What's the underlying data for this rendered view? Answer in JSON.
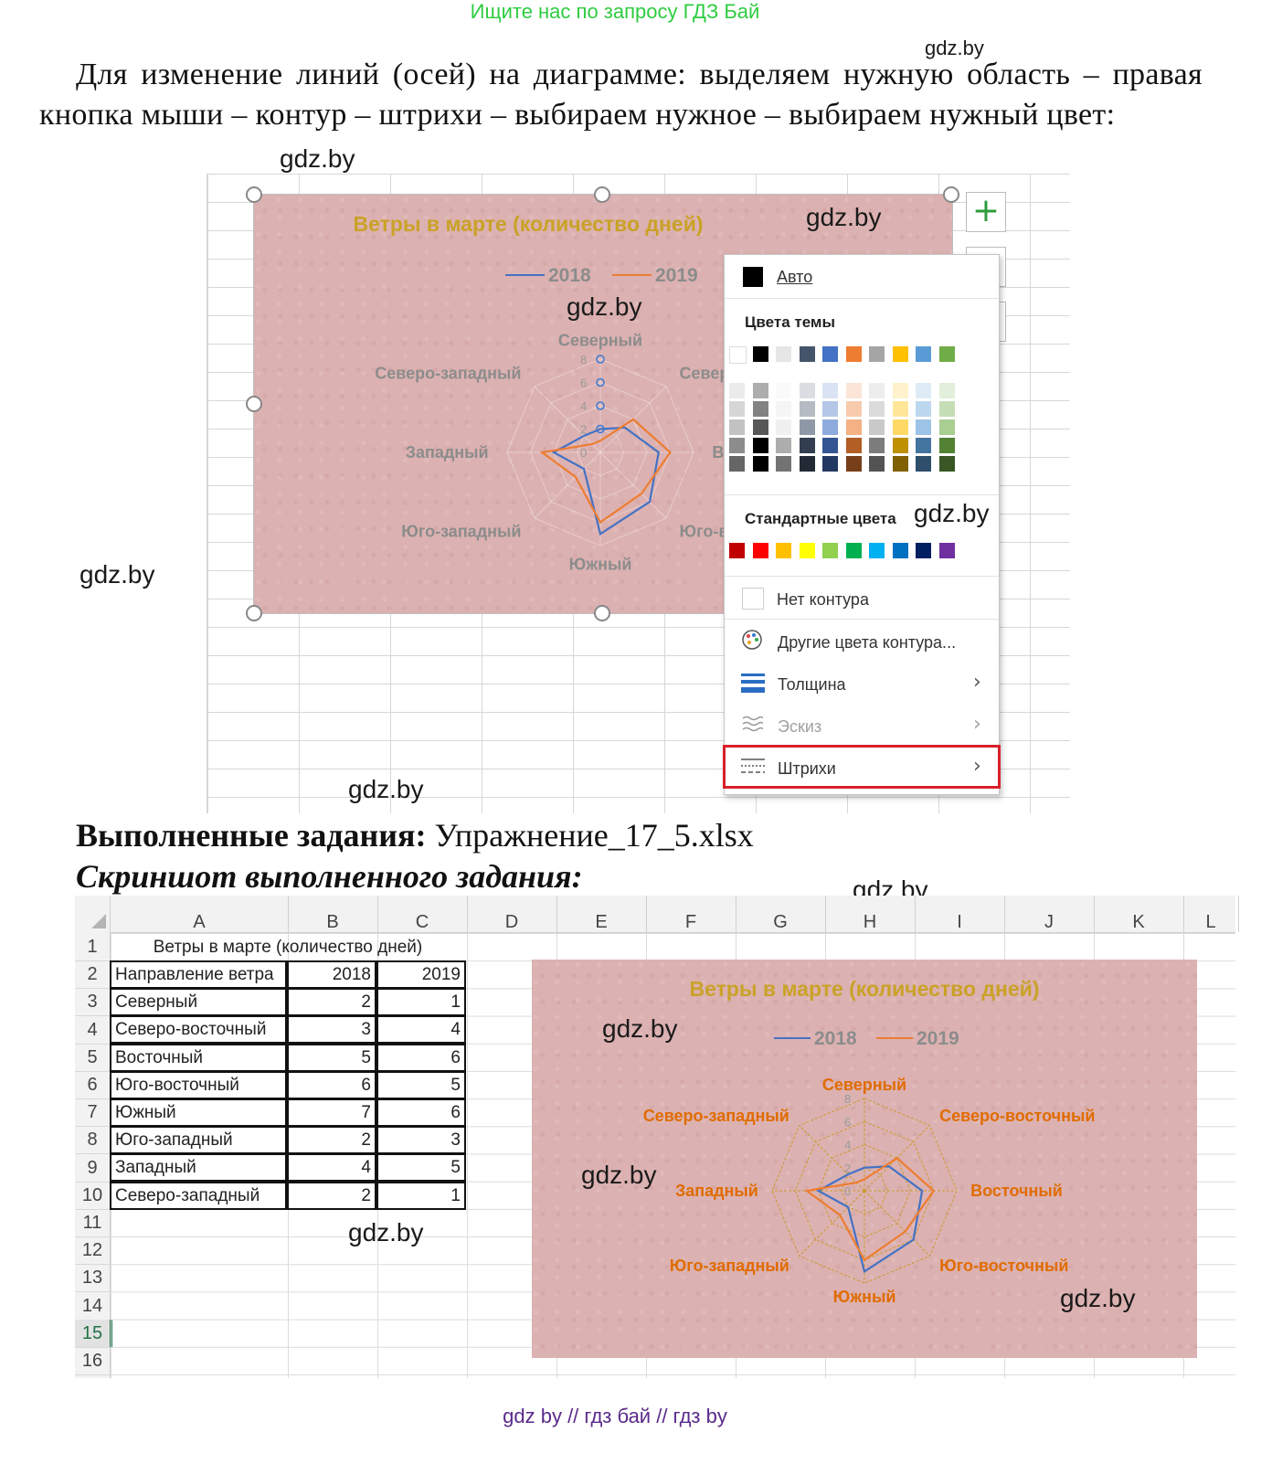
{
  "watermark_top": "Ищите нас по запросу ГДЗ Бай",
  "watermark": "gdz.by",
  "instruction": "Для изменение линий (осей) на диаграмме: выделяем нужную область – правая кнопка мыши – контур – штрихи – выбираем нужное – выбираем нужный цвет:",
  "chart": {
    "title": "Ветры в марте (количество дней)",
    "legend": [
      "2018",
      "2019"
    ],
    "axis_ticks": [
      "8",
      "6",
      "4",
      "2",
      "0"
    ]
  },
  "chart_data": {
    "type": "radar",
    "title": "Ветры в марте (количество дней)",
    "categories": [
      "Северный",
      "Северо-восточный",
      "Восточный",
      "Юго-восточный",
      "Южный",
      "Юго-западный",
      "Западный",
      "Северо-западный"
    ],
    "series": [
      {
        "name": "2018",
        "values": [
          2,
          3,
          5,
          6,
          7,
          2,
          4,
          2
        ],
        "color": "#4472c4"
      },
      {
        "name": "2019",
        "values": [
          1,
          4,
          6,
          5,
          6,
          3,
          5,
          1
        ],
        "color": "#ed7d31"
      }
    ],
    "ylim": [
      0,
      8
    ],
    "ticks": [
      0,
      2,
      4,
      6,
      8
    ],
    "legend_position": "top",
    "title_color": "#c9a227",
    "label_color_first": "#8c8c8c",
    "label_color_second": "#e06c00"
  },
  "menu": {
    "auto": "Авто",
    "theme_colors": "Цвета темы",
    "standard_colors": "Стандартные цвета",
    "no_outline": "Нет контура",
    "more_colors": "Другие цвета контура...",
    "weight": "Толщина",
    "sketch": "Эскиз",
    "dashes": "Штрихи",
    "theme_row": [
      "#ffffff",
      "#000000",
      "#e7e6e6",
      "#44546a",
      "#4472c4",
      "#ed7d31",
      "#a5a5a5",
      "#ffc000",
      "#5b9bd5",
      "#70ad47"
    ],
    "standard_row": [
      "#c00000",
      "#ff0000",
      "#ffc000",
      "#ffff00",
      "#92d050",
      "#00b050",
      "#00b0f0",
      "#0070c0",
      "#002060",
      "#7030a0"
    ],
    "highlight_color": "#d9202a"
  },
  "done_label": "Выполненные задания:",
  "done_file": "Упражнение_17_5.xlsx",
  "screenshot_label": "Скриншот выполненного задания:",
  "sheet": {
    "columns": [
      "A",
      "B",
      "C",
      "D",
      "E",
      "F",
      "G",
      "H",
      "I",
      "J",
      "K",
      "L"
    ],
    "rows": [
      "1",
      "2",
      "3",
      "4",
      "5",
      "6",
      "7",
      "8",
      "9",
      "10",
      "11",
      "12",
      "13",
      "14",
      "15",
      "16"
    ],
    "title": "Ветры в марте (количество дней)",
    "header": [
      "Направление ветра",
      "2018",
      "2019"
    ],
    "data": [
      [
        "Северный",
        "2",
        "1"
      ],
      [
        "Северо-восточный",
        "3",
        "4"
      ],
      [
        "Восточный",
        "5",
        "6"
      ],
      [
        "Юго-восточный",
        "6",
        "5"
      ],
      [
        "Южный",
        "7",
        "6"
      ],
      [
        "Юго-западный",
        "2",
        "3"
      ],
      [
        "Западный",
        "4",
        "5"
      ],
      [
        "Северо-западный",
        "2",
        "1"
      ]
    ]
  },
  "footer": "gdz by  //  гдз бай  //  гдз by"
}
